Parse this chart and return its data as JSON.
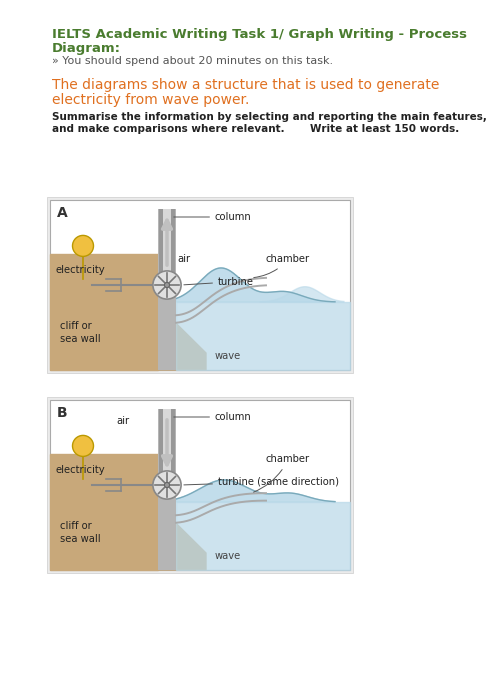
{
  "bg_color": "#ffffff",
  "title_color": "#4a7c2f",
  "subtitle_color": "#e07020",
  "title_line1": "IELTS Academic Writing Task 1/ Graph Writing - Process",
  "title_line2": "Diagram:",
  "subtitle_bullet": "» You should spend about 20 minutes on this task.",
  "diagram_title_line1": "The diagrams show a structure that is used to generate",
  "diagram_title_line2": "electricity from wave power.",
  "instruction_line1": "Summarise the information by selecting and reporting the main features,",
  "instruction_line2": "and make comparisons where relevant.       Write at least 150 words.",
  "panel_A_label": "A",
  "panel_B_label": "B",
  "label_column": "column",
  "label_turbine_A": "turbine",
  "label_turbine_B": "turbine (same direction)",
  "label_chamber": "chamber",
  "label_electricity": "electricity",
  "label_cliff": "cliff or\nsea wall",
  "label_air_A": "air",
  "label_air_B": "air",
  "label_wave_A": "wave",
  "label_wave_B": "wave",
  "sand_color": "#c8a87a",
  "water_color": "#b8d8e8",
  "wall_color": "#b8b8b8",
  "turbine_color": "#888888",
  "bulb_color": "#f0c040",
  "page_bg": "#f5f5f5"
}
